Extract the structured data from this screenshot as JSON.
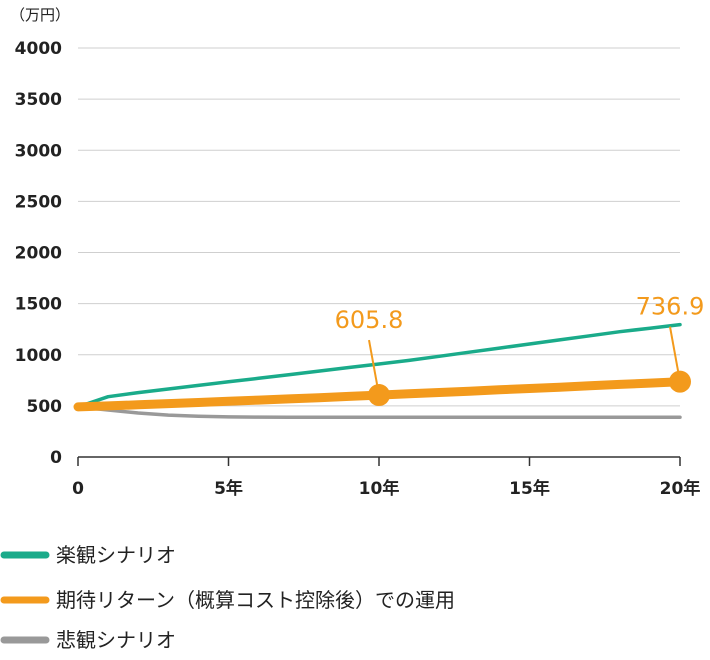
{
  "chart_data": {
    "type": "line",
    "unit_label": "（万円）",
    "x": [
      0,
      1,
      2,
      3,
      4,
      5,
      6,
      7,
      8,
      9,
      10,
      11,
      12,
      13,
      14,
      15,
      16,
      17,
      18,
      19,
      20
    ],
    "x_ticks": [
      {
        "value": 0,
        "label": "0"
      },
      {
        "value": 5,
        "label": "5年"
      },
      {
        "value": 10,
        "label": "10年"
      },
      {
        "value": 15,
        "label": "15年"
      },
      {
        "value": 20,
        "label": "20年"
      }
    ],
    "y_ticks": [
      0,
      500,
      1000,
      1500,
      2000,
      2500,
      3000,
      3500,
      4000
    ],
    "xlim": [
      0,
      20
    ],
    "ylim": [
      0,
      4000
    ],
    "grid": true,
    "series": [
      {
        "name": "楽観シナリオ",
        "color": "#1aab8a",
        "values": [
          490,
          590,
          630,
          665,
          700,
          735,
          770,
          805,
          840,
          875,
          910,
          945,
          985,
          1025,
          1065,
          1105,
          1145,
          1185,
          1225,
          1260,
          1295
        ]
      },
      {
        "name": "期待リターン（概算コスト控除後）での運用",
        "color": "#f39a1c",
        "values": [
          490,
          500,
          511,
          522,
          533,
          545,
          556,
          568,
          580,
          593,
          605.8,
          618,
          631,
          644,
          657,
          670,
          683,
          697,
          710,
          723,
          736.9
        ]
      },
      {
        "name": "悲観シナリオ",
        "color": "#999999",
        "values": [
          490,
          460,
          430,
          410,
          398,
          392,
          390,
          389,
          389,
          389,
          389,
          389,
          389,
          389,
          389,
          389,
          389,
          389,
          389,
          389,
          389
        ]
      }
    ],
    "annotations": [
      {
        "series": 1,
        "x": 10,
        "y": 605.8,
        "label": "605.8"
      },
      {
        "series": 1,
        "x": 20,
        "y": 736.9,
        "label": "736.9"
      }
    ],
    "legend": {
      "position": "bottom-left"
    }
  }
}
